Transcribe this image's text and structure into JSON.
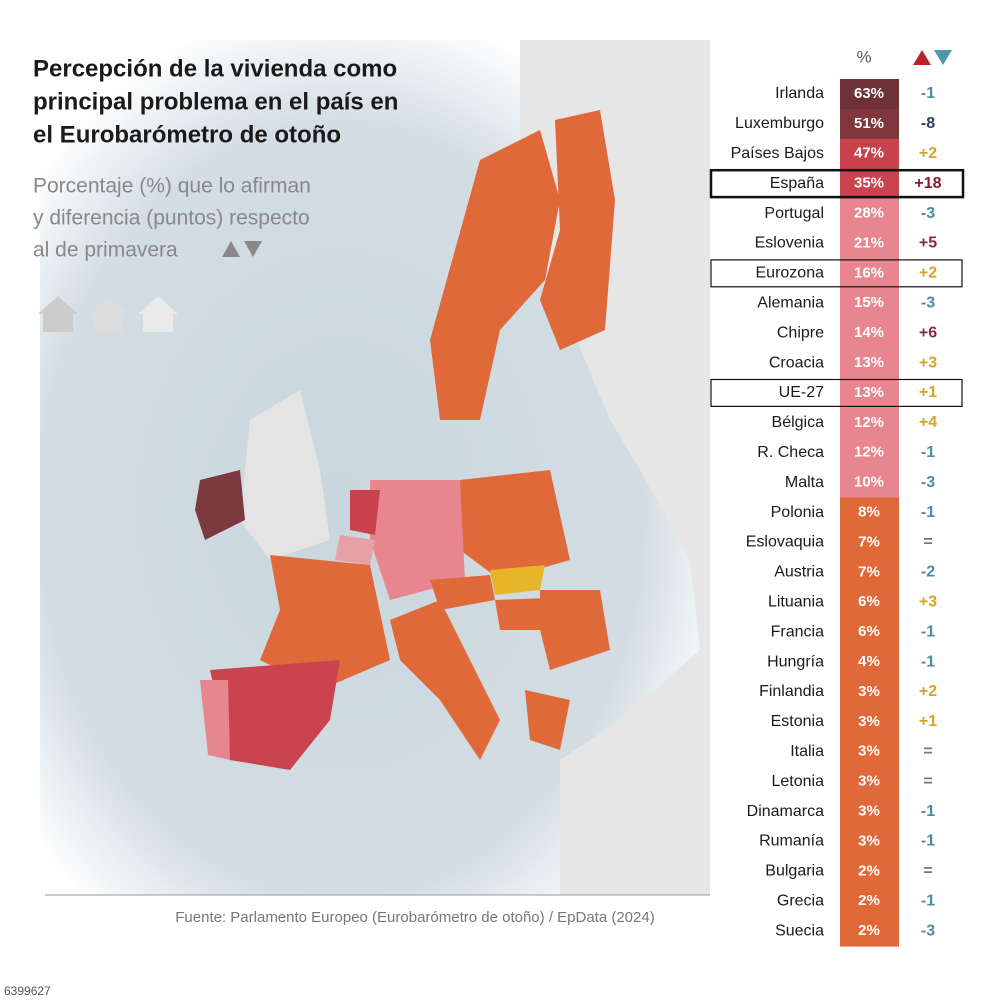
{
  "header": {
    "title": [
      "Percepción de la vivienda como",
      "principal problema en el país en",
      "el Eurobarómetro de otoño"
    ],
    "subtitle": [
      "Porcentaje (%) que lo afirman",
      "y diferencia (puntos) respecto",
      "al de primavera"
    ]
  },
  "table": {
    "columns": [
      "%"
    ],
    "rows": [
      {
        "name": "Irlanda",
        "pct": "63%",
        "diff": "-1",
        "pct_color": "#6e3137",
        "diff_color": "#4a8ca0"
      },
      {
        "name": "Luxemburgo",
        "pct": "51%",
        "diff": "-8",
        "pct_color": "#80363d",
        "diff_color": "#2b3f5a"
      },
      {
        "name": "Países Bajos",
        "pct": "47%",
        "diff": "+2",
        "pct_color": "#c8424c",
        "diff_color": "#d9a227"
      },
      {
        "name": "España",
        "pct": "35%",
        "diff": "+18",
        "pct_color": "#c9444e",
        "diff_color": "#8b1a2a",
        "box": "bold"
      },
      {
        "name": "Portugal",
        "pct": "28%",
        "diff": "-3",
        "pct_color": "#e8868f",
        "diff_color": "#4a8ca0"
      },
      {
        "name": "Eslovenia",
        "pct": "21%",
        "diff": "+5",
        "pct_color": "#e8868f",
        "diff_color": "#8b2a3a"
      },
      {
        "name": "Eurozona",
        "pct": "16%",
        "diff": "+2",
        "pct_color": "#e8868f",
        "diff_color": "#d9a227",
        "box": "thin"
      },
      {
        "name": "Alemania",
        "pct": "15%",
        "diff": "-3",
        "pct_color": "#e8868f",
        "diff_color": "#4a8ca0"
      },
      {
        "name": "Chipre",
        "pct": "14%",
        "diff": "+6",
        "pct_color": "#e8868f",
        "diff_color": "#8b2a3a"
      },
      {
        "name": "Croacia",
        "pct": "13%",
        "diff": "+3",
        "pct_color": "#e8868f",
        "diff_color": "#d9a227"
      },
      {
        "name": "UE-27",
        "pct": "13%",
        "diff": "+1",
        "pct_color": "#e8868f",
        "diff_color": "#d9a227",
        "box": "thin"
      },
      {
        "name": "Bélgica",
        "pct": "12%",
        "diff": "+4",
        "pct_color": "#e8868f",
        "diff_color": "#d9a227"
      },
      {
        "name": "R. Checa",
        "pct": "12%",
        "diff": "-1",
        "pct_color": "#e8868f",
        "diff_color": "#4a8ca0"
      },
      {
        "name": "Malta",
        "pct": "10%",
        "diff": "-3",
        "pct_color": "#e8868f",
        "diff_color": "#4a8ca0"
      },
      {
        "name": "Polonia",
        "pct": "8%",
        "diff": "-1",
        "pct_color": "#e0693a",
        "diff_color": "#4a8ca0"
      },
      {
        "name": "Eslovaquia",
        "pct": "7%",
        "diff": "=",
        "pct_color": "#e0693a",
        "diff_color": "#777777"
      },
      {
        "name": "Austria",
        "pct": "7%",
        "diff": "-2",
        "pct_color": "#e0693a",
        "diff_color": "#4a8ca0"
      },
      {
        "name": "Lituania",
        "pct": "6%",
        "diff": "+3",
        "pct_color": "#e0693a",
        "diff_color": "#d9a227"
      },
      {
        "name": "Francia",
        "pct": "6%",
        "diff": "-1",
        "pct_color": "#e0693a",
        "diff_color": "#4a8ca0"
      },
      {
        "name": "Hungría",
        "pct": "4%",
        "diff": "-1",
        "pct_color": "#e0693a",
        "diff_color": "#4a8ca0"
      },
      {
        "name": "Finlandia",
        "pct": "3%",
        "diff": "+2",
        "pct_color": "#e0693a",
        "diff_color": "#d9a227"
      },
      {
        "name": "Estonia",
        "pct": "3%",
        "diff": "+1",
        "pct_color": "#e0693a",
        "diff_color": "#d9a227"
      },
      {
        "name": "Italia",
        "pct": "3%",
        "diff": "=",
        "pct_color": "#e0693a",
        "diff_color": "#777777"
      },
      {
        "name": "Letonia",
        "pct": "3%",
        "diff": "=",
        "pct_color": "#e0693a",
        "diff_color": "#777777"
      },
      {
        "name": "Dinamarca",
        "pct": "3%",
        "diff": "-1",
        "pct_color": "#e0693a",
        "diff_color": "#4a8ca0"
      },
      {
        "name": "Rumanía",
        "pct": "3%",
        "diff": "-1",
        "pct_color": "#e0693a",
        "diff_color": "#4a8ca0"
      },
      {
        "name": "Bulgaria",
        "pct": "2%",
        "diff": "=",
        "pct_color": "#e0693a",
        "diff_color": "#777777"
      },
      {
        "name": "Grecia",
        "pct": "2%",
        "diff": "-1",
        "pct_color": "#e0693a",
        "diff_color": "#4a8ca0"
      },
      {
        "name": "Suecia",
        "pct": "2%",
        "diff": "-3",
        "pct_color": "#e0693a",
        "diff_color": "#4a8ca0"
      }
    ]
  },
  "footer": {
    "source": "Fuente: Parlamento Europeo (Eurobarómetro de otoño)  / EpData (2024)",
    "id": "6399627"
  }
}
